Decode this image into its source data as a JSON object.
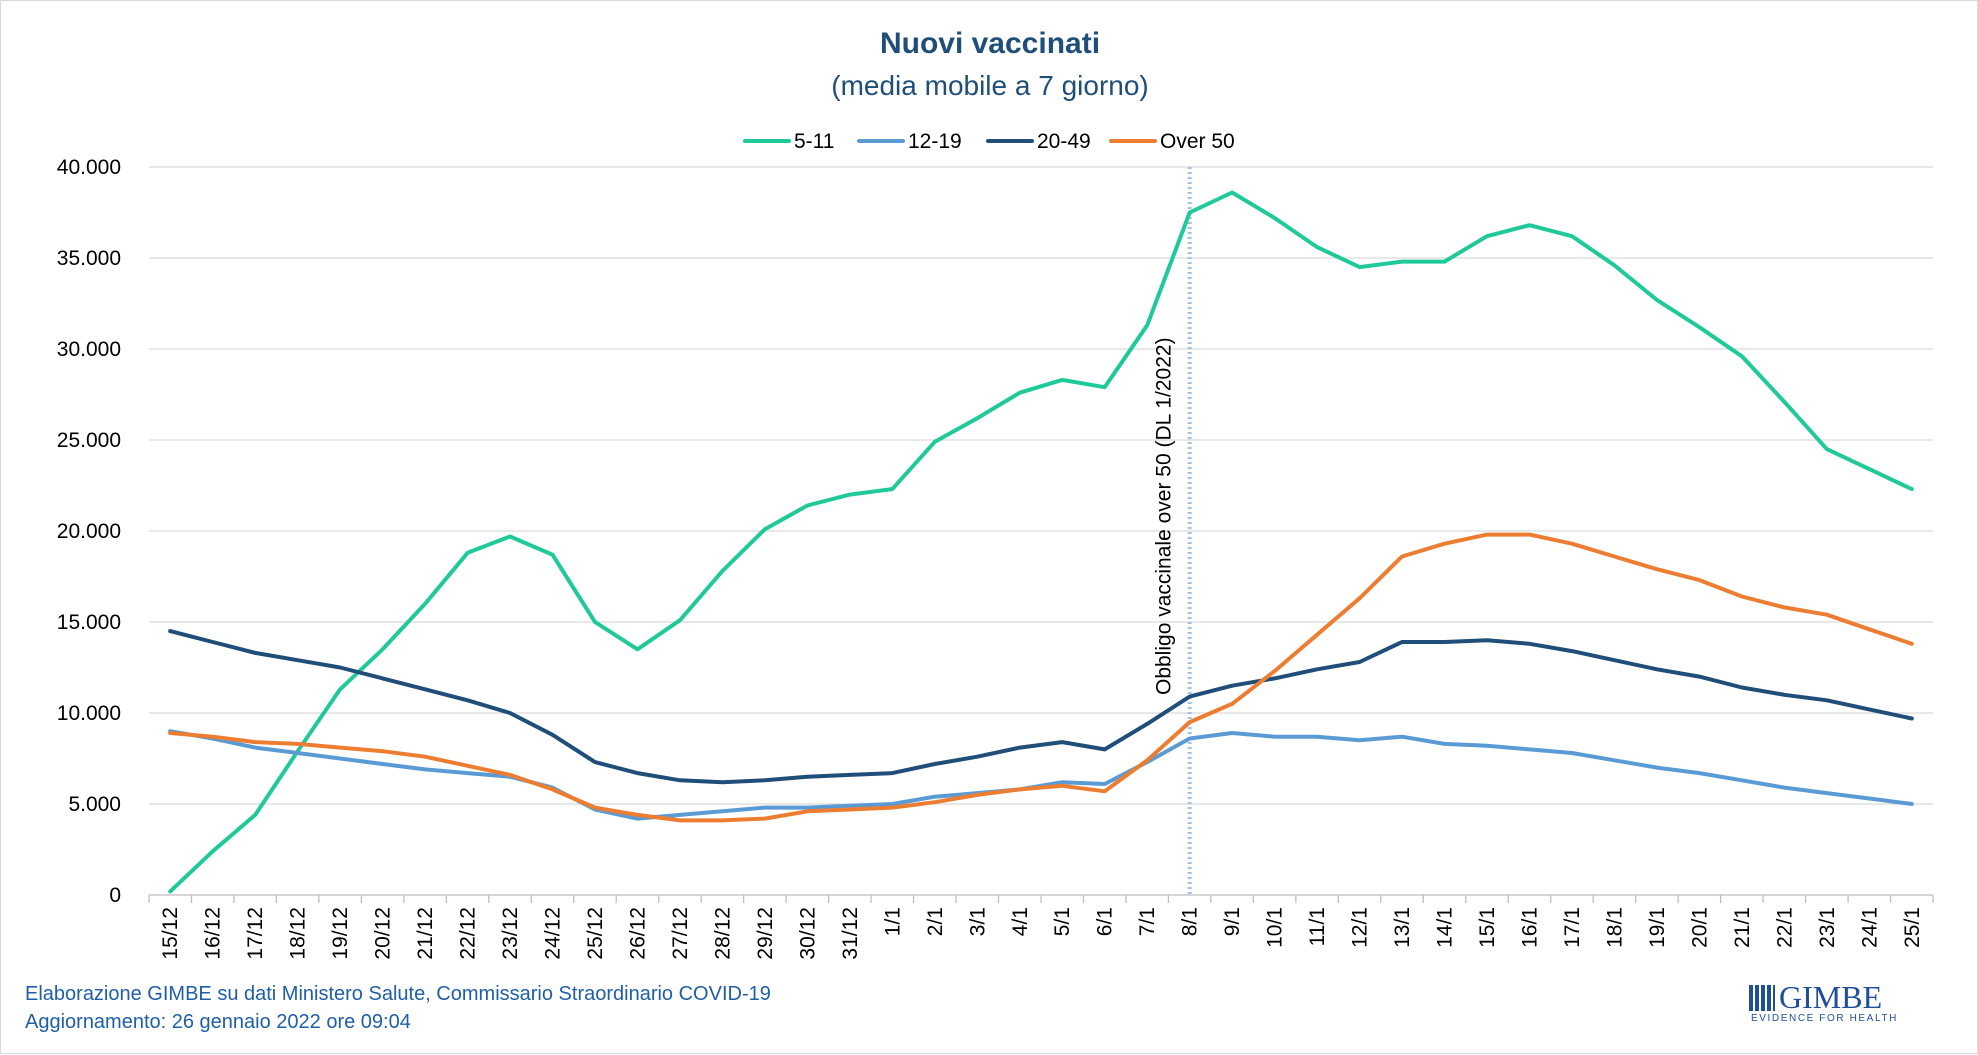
{
  "chart_data": {
    "type": "line",
    "title": "Nuovi vaccinati",
    "subtitle": "(media mobile a 7 giorno)",
    "xlabel": "",
    "ylabel": "",
    "ylim": [
      0,
      40000
    ],
    "yticks": [
      0,
      5000,
      10000,
      15000,
      20000,
      25000,
      30000,
      35000,
      40000
    ],
    "ytick_labels": [
      "0",
      "5.000",
      "10.000",
      "15.000",
      "20.000",
      "25.000",
      "30.000",
      "35.000",
      "40.000"
    ],
    "grid": "horizontal",
    "legend_position": "top-center",
    "categories": [
      "15/12",
      "16/12",
      "17/12",
      "18/12",
      "19/12",
      "20/12",
      "21/12",
      "22/12",
      "23/12",
      "24/12",
      "25/12",
      "26/12",
      "27/12",
      "28/12",
      "29/12",
      "30/12",
      "31/12",
      "1/1",
      "2/1",
      "3/1",
      "4/1",
      "5/1",
      "6/1",
      "7/1",
      "8/1",
      "9/1",
      "10/1",
      "11/1",
      "12/1",
      "13/1",
      "14/1",
      "15/1",
      "16/1",
      "17/1",
      "18/1",
      "19/1",
      "20/1",
      "21/1",
      "22/1",
      "23/1",
      "24/1",
      "25/1"
    ],
    "series": [
      {
        "name": "5-11",
        "color": "#1fc99a",
        "values": [
          200,
          2400,
          4400,
          7900,
          11300,
          13500,
          16000,
          18800,
          19700,
          18700,
          15000,
          13500,
          15100,
          17800,
          20100,
          21400,
          22000,
          22300,
          24900,
          26200,
          27600,
          28300,
          27900,
          31300,
          37500,
          38600,
          37200,
          35600,
          34500,
          34800,
          34800,
          36200,
          36800,
          36200,
          34600,
          32700,
          31200,
          29600,
          27100,
          24500,
          23400,
          22300
        ]
      },
      {
        "name": "12-19",
        "color": "#5b9bd5",
        "values": [
          9000,
          8600,
          8100,
          7800,
          7500,
          7200,
          6900,
          6700,
          6500,
          5900,
          4700,
          4200,
          4400,
          4600,
          4800,
          4800,
          4900,
          5000,
          5400,
          5600,
          5800,
          6200,
          6100,
          7300,
          8600,
          8900,
          8700,
          8700,
          8500,
          8700,
          8300,
          8200,
          8000,
          7800,
          7400,
          7000,
          6700,
          6300,
          5900,
          5600,
          5300,
          5000
        ]
      },
      {
        "name": "20-49",
        "color": "#1f4e79",
        "values": [
          14500,
          13900,
          13300,
          12900,
          12500,
          11900,
          11300,
          10700,
          10000,
          8800,
          7300,
          6700,
          6300,
          6200,
          6300,
          6500,
          6600,
          6700,
          7200,
          7600,
          8100,
          8400,
          8000,
          9400,
          10900,
          11500,
          11900,
          12400,
          12800,
          13900,
          13900,
          14000,
          13800,
          13400,
          12900,
          12400,
          12000,
          11400,
          11000,
          10700,
          10200,
          9700
        ]
      },
      {
        "name": "Over 50",
        "color": "#ed7d31",
        "values": [
          8900,
          8700,
          8400,
          8300,
          8100,
          7900,
          7600,
          7100,
          6600,
          5800,
          4800,
          4400,
          4100,
          4100,
          4200,
          4600,
          4700,
          4800,
          5100,
          5500,
          5800,
          6000,
          5700,
          7400,
          9500,
          10500,
          12300,
          14300,
          16300,
          18600,
          19300,
          19800,
          19800,
          19300,
          18600,
          17900,
          17300,
          16400,
          15800,
          15400,
          14600,
          13800
        ]
      }
    ],
    "annotations": [
      {
        "text": "Obbligo vaccinale over 50 (DL 1/2022)",
        "x": "8/1",
        "style": "dotted-vertical-line"
      }
    ]
  },
  "footer": {
    "source": "Elaborazione GIMBE su dati Ministero Salute, Commissario Straordinario COVID-19",
    "updated": "Aggiornamento: 26 gennaio 2022 ore 09:04"
  },
  "logo": {
    "word": "GIMBE",
    "tagline": "EVIDENCE FOR HEALTH"
  }
}
